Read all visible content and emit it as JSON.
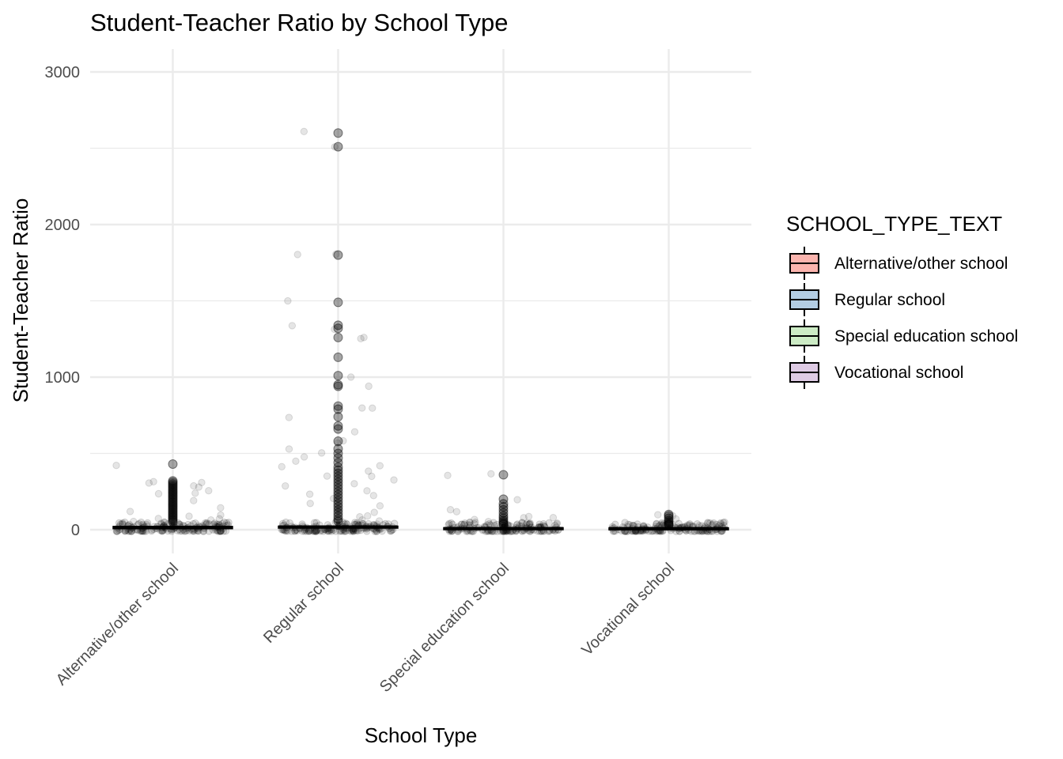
{
  "chart_data": {
    "type": "box",
    "title": "Student-Teacher Ratio by School Type",
    "xlabel": "School Type",
    "ylabel": "Student-Teacher Ratio",
    "ylim": [
      -150,
      3150
    ],
    "yticks": [
      0,
      1000,
      2000,
      3000
    ],
    "grid": true,
    "legend": {
      "title": "SCHOOL_TYPE_TEXT",
      "position": "right"
    },
    "categories": [
      "Alternative/other school",
      "Regular school",
      "Special education school",
      "Vocational school"
    ],
    "series": [
      {
        "name": "Alternative/other school",
        "fill": "#fbb4ae",
        "median": 15,
        "q1": 8,
        "q3": 20,
        "outliers": [
          430,
          320,
          310,
          300,
          290,
          280,
          270,
          260,
          250,
          240,
          230,
          220,
          210,
          200,
          190,
          180,
          170,
          160,
          150,
          140,
          130,
          120,
          110,
          100,
          90,
          80,
          70,
          60,
          50
        ],
        "jitter_points": [
          430,
          300,
          280,
          320,
          310,
          290,
          250,
          240,
          230,
          190,
          150,
          120,
          100,
          90,
          80,
          70,
          60,
          50,
          45,
          40,
          35,
          30,
          25,
          20,
          18,
          15,
          12,
          10,
          8,
          5,
          3,
          2
        ]
      },
      {
        "name": "Regular school",
        "fill": "#b3cde3",
        "median": 18,
        "q1": 12,
        "q3": 22,
        "outliers": [
          2600,
          2510,
          1800,
          1490,
          1340,
          1320,
          1260,
          1130,
          1010,
          950,
          940,
          810,
          790,
          740,
          680,
          660,
          580,
          530,
          500,
          470,
          440,
          410,
          390,
          370,
          350,
          330,
          310,
          290,
          270,
          250,
          230,
          210,
          190,
          170,
          150,
          130,
          110,
          90,
          70,
          55
        ],
        "jitter_points": [
          2600,
          2510,
          1800,
          1800,
          1490,
          1340,
          1320,
          1260,
          1250,
          1010,
          950,
          800,
          790,
          740,
          640,
          580,
          560,
          520,
          500,
          480,
          440,
          420,
          410,
          380,
          360,
          340,
          320,
          300,
          280,
          260,
          240,
          220,
          200,
          180,
          160,
          140,
          120,
          100,
          80,
          60,
          50,
          40,
          30,
          20,
          10,
          5
        ]
      },
      {
        "name": "Special education school",
        "fill": "#ccebc5",
        "median": 8,
        "q1": 5,
        "q3": 12,
        "outliers": [
          360,
          200,
          170,
          150,
          130,
          110,
          90,
          75,
          60,
          50,
          40,
          35
        ],
        "jitter_points": [
          360,
          350,
          200,
          140,
          110,
          90,
          80,
          70,
          60,
          50,
          40,
          35,
          30,
          25,
          20,
          15,
          10,
          5,
          3
        ]
      },
      {
        "name": "Vocational school",
        "fill": "#decbe4",
        "median": 8,
        "q1": 5,
        "q3": 11,
        "outliers": [
          100,
          90,
          75,
          60,
          50,
          40,
          35,
          30
        ],
        "jitter_points": [
          100,
          90,
          60,
          45,
          35,
          30,
          25,
          20,
          15,
          10,
          8,
          5,
          3
        ]
      }
    ]
  }
}
